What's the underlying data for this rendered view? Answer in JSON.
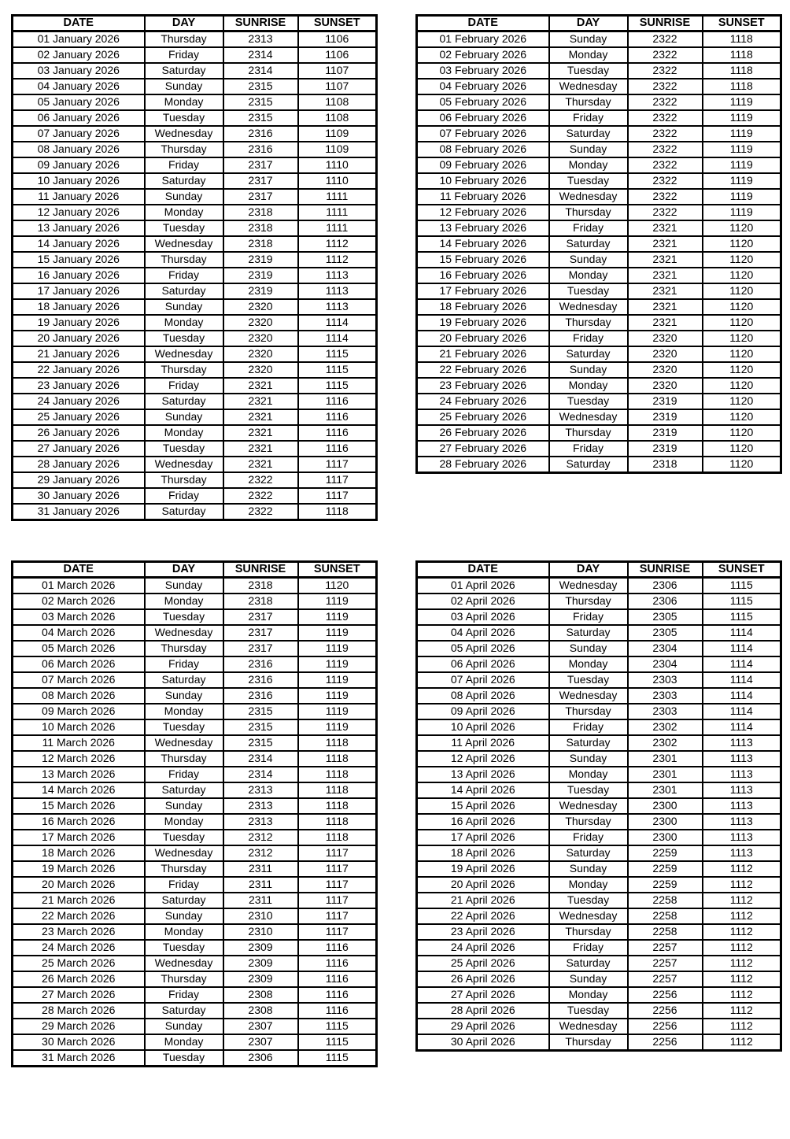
{
  "page": {
    "background_color": "#ffffff",
    "text_color": "#000000",
    "border_color": "#000000"
  },
  "tables": [
    {
      "name": "january-2026",
      "headers": [
        "DATE",
        "DAY",
        "SUNRISE",
        "SUNSET"
      ],
      "rows": [
        [
          "01 January 2026",
          "Thursday",
          "2313",
          "1106"
        ],
        [
          "02 January 2026",
          "Friday",
          "2314",
          "1106"
        ],
        [
          "03 January 2026",
          "Saturday",
          "2314",
          "1107"
        ],
        [
          "04 January 2026",
          "Sunday",
          "2315",
          "1107"
        ],
        [
          "05 January 2026",
          "Monday",
          "2315",
          "1108"
        ],
        [
          "06 January 2026",
          "Tuesday",
          "2315",
          "1108"
        ],
        [
          "07 January 2026",
          "Wednesday",
          "2316",
          "1109"
        ],
        [
          "08 January 2026",
          "Thursday",
          "2316",
          "1109"
        ],
        [
          "09 January 2026",
          "Friday",
          "2317",
          "1110"
        ],
        [
          "10 January 2026",
          "Saturday",
          "2317",
          "1110"
        ],
        [
          "11 January 2026",
          "Sunday",
          "2317",
          "1111"
        ],
        [
          "12 January 2026",
          "Monday",
          "2318",
          "1111"
        ],
        [
          "13 January 2026",
          "Tuesday",
          "2318",
          "1111"
        ],
        [
          "14 January 2026",
          "Wednesday",
          "2318",
          "1112"
        ],
        [
          "15 January 2026",
          "Thursday",
          "2319",
          "1112"
        ],
        [
          "16 January 2026",
          "Friday",
          "2319",
          "1113"
        ],
        [
          "17 January 2026",
          "Saturday",
          "2319",
          "1113"
        ],
        [
          "18 January 2026",
          "Sunday",
          "2320",
          "1113"
        ],
        [
          "19 January 2026",
          "Monday",
          "2320",
          "1114"
        ],
        [
          "20 January 2026",
          "Tuesday",
          "2320",
          "1114"
        ],
        [
          "21 January 2026",
          "Wednesday",
          "2320",
          "1115"
        ],
        [
          "22 January 2026",
          "Thursday",
          "2320",
          "1115"
        ],
        [
          "23 January 2026",
          "Friday",
          "2321",
          "1115"
        ],
        [
          "24 January 2026",
          "Saturday",
          "2321",
          "1116"
        ],
        [
          "25 January 2026",
          "Sunday",
          "2321",
          "1116"
        ],
        [
          "26 January 2026",
          "Monday",
          "2321",
          "1116"
        ],
        [
          "27 January 2026",
          "Tuesday",
          "2321",
          "1116"
        ],
        [
          "28 January 2026",
          "Wednesday",
          "2321",
          "1117"
        ],
        [
          "29 January 2026",
          "Thursday",
          "2322",
          "1117"
        ],
        [
          "30 January 2026",
          "Friday",
          "2322",
          "1117"
        ],
        [
          "31 January 2026",
          "Saturday",
          "2322",
          "1118"
        ]
      ]
    },
    {
      "name": "february-2026",
      "headers": [
        "DATE",
        "DAY",
        "SUNRISE",
        "SUNSET"
      ],
      "rows": [
        [
          "01 February 2026",
          "Sunday",
          "2322",
          "1118"
        ],
        [
          "02 February 2026",
          "Monday",
          "2322",
          "1118"
        ],
        [
          "03 February 2026",
          "Tuesday",
          "2322",
          "1118"
        ],
        [
          "04 February 2026",
          "Wednesday",
          "2322",
          "1118"
        ],
        [
          "05 February 2026",
          "Thursday",
          "2322",
          "1119"
        ],
        [
          "06 February 2026",
          "Friday",
          "2322",
          "1119"
        ],
        [
          "07 February 2026",
          "Saturday",
          "2322",
          "1119"
        ],
        [
          "08 February 2026",
          "Sunday",
          "2322",
          "1119"
        ],
        [
          "09 February 2026",
          "Monday",
          "2322",
          "1119"
        ],
        [
          "10 February 2026",
          "Tuesday",
          "2322",
          "1119"
        ],
        [
          "11 February 2026",
          "Wednesday",
          "2322",
          "1119"
        ],
        [
          "12 February 2026",
          "Thursday",
          "2322",
          "1119"
        ],
        [
          "13 February 2026",
          "Friday",
          "2321",
          "1120"
        ],
        [
          "14 February 2026",
          "Saturday",
          "2321",
          "1120"
        ],
        [
          "15 February 2026",
          "Sunday",
          "2321",
          "1120"
        ],
        [
          "16 February 2026",
          "Monday",
          "2321",
          "1120"
        ],
        [
          "17 February 2026",
          "Tuesday",
          "2321",
          "1120"
        ],
        [
          "18 February 2026",
          "Wednesday",
          "2321",
          "1120"
        ],
        [
          "19 February 2026",
          "Thursday",
          "2321",
          "1120"
        ],
        [
          "20 February 2026",
          "Friday",
          "2320",
          "1120"
        ],
        [
          "21 February 2026",
          "Saturday",
          "2320",
          "1120"
        ],
        [
          "22 February 2026",
          "Sunday",
          "2320",
          "1120"
        ],
        [
          "23 February 2026",
          "Monday",
          "2320",
          "1120"
        ],
        [
          "24 February 2026",
          "Tuesday",
          "2319",
          "1120"
        ],
        [
          "25 February 2026",
          "Wednesday",
          "2319",
          "1120"
        ],
        [
          "26 February 2026",
          "Thursday",
          "2319",
          "1120"
        ],
        [
          "27 February 2026",
          "Friday",
          "2319",
          "1120"
        ],
        [
          "28 February 2026",
          "Saturday",
          "2318",
          "1120"
        ]
      ]
    },
    {
      "name": "march-2026",
      "headers": [
        "DATE",
        "DAY",
        "SUNRISE",
        "SUNSET"
      ],
      "rows": [
        [
          "01 March 2026",
          "Sunday",
          "2318",
          "1120"
        ],
        [
          "02 March 2026",
          "Monday",
          "2318",
          "1119"
        ],
        [
          "03 March 2026",
          "Tuesday",
          "2317",
          "1119"
        ],
        [
          "04 March 2026",
          "Wednesday",
          "2317",
          "1119"
        ],
        [
          "05 March 2026",
          "Thursday",
          "2317",
          "1119"
        ],
        [
          "06 March 2026",
          "Friday",
          "2316",
          "1119"
        ],
        [
          "07 March 2026",
          "Saturday",
          "2316",
          "1119"
        ],
        [
          "08 March 2026",
          "Sunday",
          "2316",
          "1119"
        ],
        [
          "09 March 2026",
          "Monday",
          "2315",
          "1119"
        ],
        [
          "10 March 2026",
          "Tuesday",
          "2315",
          "1119"
        ],
        [
          "11 March 2026",
          "Wednesday",
          "2315",
          "1118"
        ],
        [
          "12 March 2026",
          "Thursday",
          "2314",
          "1118"
        ],
        [
          "13 March 2026",
          "Friday",
          "2314",
          "1118"
        ],
        [
          "14 March 2026",
          "Saturday",
          "2313",
          "1118"
        ],
        [
          "15 March 2026",
          "Sunday",
          "2313",
          "1118"
        ],
        [
          "16 March 2026",
          "Monday",
          "2313",
          "1118"
        ],
        [
          "17 March 2026",
          "Tuesday",
          "2312",
          "1118"
        ],
        [
          "18 March 2026",
          "Wednesday",
          "2312",
          "1117"
        ],
        [
          "19 March 2026",
          "Thursday",
          "2311",
          "1117"
        ],
        [
          "20 March 2026",
          "Friday",
          "2311",
          "1117"
        ],
        [
          "21 March 2026",
          "Saturday",
          "2311",
          "1117"
        ],
        [
          "22 March 2026",
          "Sunday",
          "2310",
          "1117"
        ],
        [
          "23 March 2026",
          "Monday",
          "2310",
          "1117"
        ],
        [
          "24 March 2026",
          "Tuesday",
          "2309",
          "1116"
        ],
        [
          "25 March 2026",
          "Wednesday",
          "2309",
          "1116"
        ],
        [
          "26 March 2026",
          "Thursday",
          "2309",
          "1116"
        ],
        [
          "27 March 2026",
          "Friday",
          "2308",
          "1116"
        ],
        [
          "28 March 2026",
          "Saturday",
          "2308",
          "1116"
        ],
        [
          "29 March 2026",
          "Sunday",
          "2307",
          "1115"
        ],
        [
          "30 March 2026",
          "Monday",
          "2307",
          "1115"
        ],
        [
          "31 March 2026",
          "Tuesday",
          "2306",
          "1115"
        ]
      ]
    },
    {
      "name": "april-2026",
      "headers": [
        "DATE",
        "DAY",
        "SUNRISE",
        "SUNSET"
      ],
      "rows": [
        [
          "01 April 2026",
          "Wednesday",
          "2306",
          "1115"
        ],
        [
          "02 April 2026",
          "Thursday",
          "2306",
          "1115"
        ],
        [
          "03 April 2026",
          "Friday",
          "2305",
          "1115"
        ],
        [
          "04 April 2026",
          "Saturday",
          "2305",
          "1114"
        ],
        [
          "05 April 2026",
          "Sunday",
          "2304",
          "1114"
        ],
        [
          "06 April 2026",
          "Monday",
          "2304",
          "1114"
        ],
        [
          "07 April 2026",
          "Tuesday",
          "2303",
          "1114"
        ],
        [
          "08 April 2026",
          "Wednesday",
          "2303",
          "1114"
        ],
        [
          "09 April 2026",
          "Thursday",
          "2303",
          "1114"
        ],
        [
          "10 April 2026",
          "Friday",
          "2302",
          "1114"
        ],
        [
          "11 April 2026",
          "Saturday",
          "2302",
          "1113"
        ],
        [
          "12 April 2026",
          "Sunday",
          "2301",
          "1113"
        ],
        [
          "13 April 2026",
          "Monday",
          "2301",
          "1113"
        ],
        [
          "14 April 2026",
          "Tuesday",
          "2301",
          "1113"
        ],
        [
          "15 April 2026",
          "Wednesday",
          "2300",
          "1113"
        ],
        [
          "16 April 2026",
          "Thursday",
          "2300",
          "1113"
        ],
        [
          "17 April 2026",
          "Friday",
          "2300",
          "1113"
        ],
        [
          "18 April 2026",
          "Saturday",
          "2259",
          "1113"
        ],
        [
          "19 April 2026",
          "Sunday",
          "2259",
          "1112"
        ],
        [
          "20 April 2026",
          "Monday",
          "2259",
          "1112"
        ],
        [
          "21 April 2026",
          "Tuesday",
          "2258",
          "1112"
        ],
        [
          "22 April 2026",
          "Wednesday",
          "2258",
          "1112"
        ],
        [
          "23 April 2026",
          "Thursday",
          "2258",
          "1112"
        ],
        [
          "24 April 2026",
          "Friday",
          "2257",
          "1112"
        ],
        [
          "25 April 2026",
          "Saturday",
          "2257",
          "1112"
        ],
        [
          "26 April 2026",
          "Sunday",
          "2257",
          "1112"
        ],
        [
          "27 April 2026",
          "Monday",
          "2256",
          "1112"
        ],
        [
          "28 April 2026",
          "Tuesday",
          "2256",
          "1112"
        ],
        [
          "29 April 2026",
          "Wednesday",
          "2256",
          "1112"
        ],
        [
          "30 April 2026",
          "Thursday",
          "2256",
          "1112"
        ]
      ]
    }
  ]
}
